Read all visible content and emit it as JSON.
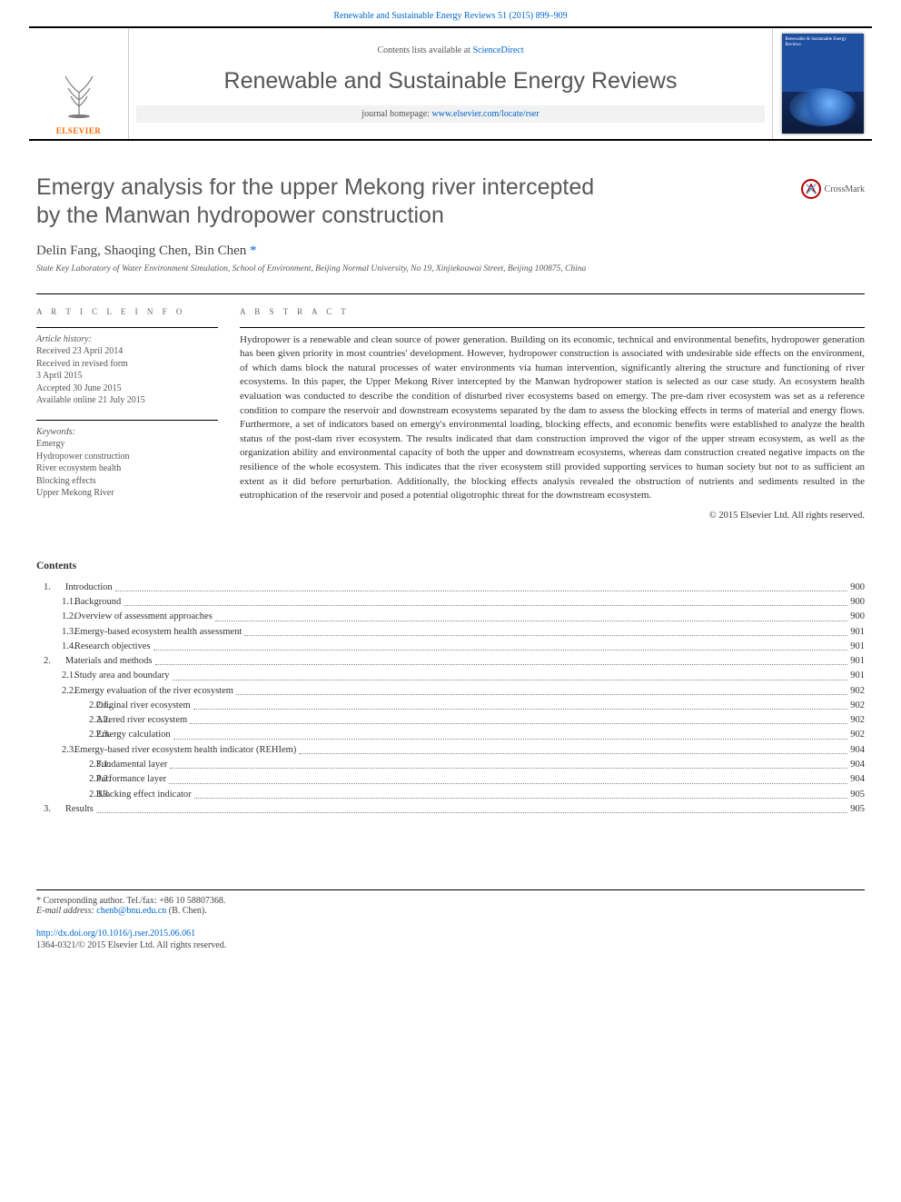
{
  "top_link": "Renewable and Sustainable Energy Reviews 51 (2015) 899–909",
  "masthead": {
    "elsevier": "ELSEVIER",
    "contents_prefix": "Contents lists available at ",
    "contents_link": "ScienceDirect",
    "journal_name": "Renewable and Sustainable Energy Reviews",
    "homepage_prefix": "journal homepage: ",
    "homepage_url": "www.elsevier.com/locate/rser",
    "cover_text": "Renewable & Sustainable Energy Reviews"
  },
  "crossmark_label": "CrossMark",
  "title_line1": "Emergy analysis for the upper Mekong river intercepted",
  "title_line2": "by the Manwan hydropower construction",
  "authors": "Delin Fang, Shaoqing Chen, Bin Chen",
  "corresponding_mark": "*",
  "affiliation": "State Key Laboratory of Water Environment Simulation, School of Environment, Beijing Normal University, No 19, Xinjiekouwai Street, Beijing 100875, China",
  "info": {
    "heading": "A R T I C L E  I N F O",
    "history_label": "Article history:",
    "history": [
      "Received 23 April 2014",
      "Received in revised form",
      "3 April 2015",
      "Accepted 30 June 2015",
      "Available online 21 July 2015"
    ],
    "keywords_label": "Keywords:",
    "keywords": [
      "Emergy",
      "Hydropower construction",
      "River ecosystem health",
      "Blocking effects",
      "Upper Mekong River"
    ]
  },
  "abstract": {
    "heading": "A B S T R A C T",
    "text": "Hydropower is a renewable and clean source of power generation. Building on its economic, technical and environmental benefits, hydropower generation has been given priority in most countries' development. However, hydropower construction is associated with undesirable side effects on the environment, of which dams block the natural processes of water environments via human intervention, significantly altering the structure and functioning of river ecosystems. In this paper, the Upper Mekong River intercepted by the Manwan hydropower station is selected as our case study. An ecosystem health evaluation was conducted to describe the condition of disturbed river ecosystems based on emergy. The pre-dam river ecosystem was set as a reference condition to compare the reservoir and downstream ecosystems separated by the dam to assess the blocking effects in terms of material and energy flows. Furthermore, a set of indicators based on emergy's environmental loading, blocking effects, and economic benefits were established to analyze the health status of the post-dam river ecosystem. The results indicated that dam construction improved the vigor of the upper stream ecosystem, as well as the organization ability and environmental capacity of both the upper and downstream ecosystems, whereas dam construction created negative impacts on the resilience of the whole ecosystem. This indicates that the river ecosystem still provided supporting services to human society but not to as sufficient an extent as it did before perturbation. Additionally, the blocking effects analysis revealed the obstruction of nutrients and sediments resulted in the eutrophication of the reservoir and posed a potential oligotrophic threat for the downstream ecosystem.",
    "copyright": "© 2015 Elsevier Ltd. All rights reserved."
  },
  "contents": {
    "heading": "Contents",
    "items": [
      {
        "level": 1,
        "num": "1.",
        "title": "Introduction",
        "page": "900"
      },
      {
        "level": 2,
        "num": "1.1.",
        "title": "Background",
        "page": "900"
      },
      {
        "level": 2,
        "num": "1.2.",
        "title": "Overview of assessment approaches",
        "page": "900"
      },
      {
        "level": 2,
        "num": "1.3.",
        "title": "Emergy-based ecosystem health assessment",
        "page": "901"
      },
      {
        "level": 2,
        "num": "1.4.",
        "title": "Research objectives",
        "page": "901"
      },
      {
        "level": 1,
        "num": "2.",
        "title": "Materials and methods",
        "page": "901"
      },
      {
        "level": 2,
        "num": "2.1.",
        "title": "Study area and boundary",
        "page": "901"
      },
      {
        "level": 2,
        "num": "2.2.",
        "title": "Emergy evaluation of the river ecosystem",
        "page": "902"
      },
      {
        "level": 3,
        "num": "2.2.1.",
        "title": "Original river ecosystem",
        "page": "902"
      },
      {
        "level": 3,
        "num": "2.2.2.",
        "title": "Altered river ecosystem",
        "page": "902"
      },
      {
        "level": 3,
        "num": "2.2.3.",
        "title": "Emergy calculation",
        "page": "902"
      },
      {
        "level": 2,
        "num": "2.3.",
        "title": "Emergy-based river ecosystem health indicator (REHIem)",
        "page": "904"
      },
      {
        "level": 3,
        "num": "2.3.1.",
        "title": "Fundamental layer",
        "page": "904"
      },
      {
        "level": 3,
        "num": "2.3.2.",
        "title": "Performance layer",
        "page": "904"
      },
      {
        "level": 3,
        "num": "2.3.3.",
        "title": "Blocking effect indicator",
        "page": "905"
      },
      {
        "level": 1,
        "num": "3.",
        "title": "Results",
        "page": "905"
      }
    ]
  },
  "footer": {
    "corr": "* Corresponding author. Tel./fax: +86 10 58807368.",
    "email_label": "E-mail address: ",
    "email": "chenb@bnu.edu.cn",
    "email_suffix": " (B. Chen).",
    "doi": "http://dx.doi.org/10.1016/j.rser.2015.06.061",
    "issn": "1364-0321/© 2015 Elsevier Ltd. All rights reserved."
  },
  "colors": {
    "link": "#0066cc",
    "elsevier_orange": "#ff6600",
    "text_gray": "#595959",
    "rule": "#000000"
  }
}
